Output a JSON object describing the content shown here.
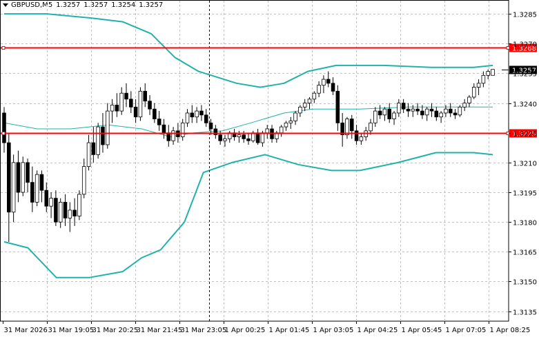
{
  "header": {
    "symbol_timeframe": "GBPUSD,M5",
    "open": "1.3257",
    "high": "1.3257",
    "low": "1.3254",
    "close": "1.3257"
  },
  "colors": {
    "background": "#ffffff",
    "grid": "#c0c0c0",
    "candle": "#000000",
    "bollinger": "#20b2aa",
    "hline": "#ff0000",
    "current_price_tag": "#000000",
    "crosshair": "#000000"
  },
  "price_axis": {
    "labels": [
      "1.3285",
      "1.3270",
      "1.3255",
      "1.3240",
      "1.3225",
      "1.3210",
      "1.3195",
      "1.3180",
      "1.3165",
      "1.3150",
      "1.3135"
    ]
  },
  "time_axis": {
    "labels": [
      "31 Mar 2026",
      "31 Mar 19:05",
      "31 Mar 20:25",
      "31 Mar 21:45",
      "31 Mar 23:05",
      "1 Apr 00:25",
      "1 Apr 01:45",
      "1 Apr 03:05",
      "1 Apr 04:25",
      "1 Apr 05:45",
      "1 Apr 07:05",
      "1 Apr 08:25"
    ]
  },
  "horizontal_lines": [
    {
      "label": "1.3268",
      "price": 1.3268
    },
    {
      "label": "1.3225",
      "price": 1.3225
    }
  ],
  "current_price": {
    "label": "1.3257",
    "price": 1.3257
  },
  "vertical_marker_time": "31 Mar 23:05",
  "chart_data": {
    "type": "candlestick",
    "ylim": [
      1.313,
      1.3292
    ],
    "bollinger": {
      "upper": [
        [
          0,
          1.3285
        ],
        [
          18,
          1.3285
        ],
        [
          36,
          1.3283
        ],
        [
          50,
          1.3281
        ],
        [
          62,
          1.3275
        ],
        [
          72,
          1.3263
        ],
        [
          82,
          1.3256
        ],
        [
          98,
          1.325
        ],
        [
          108,
          1.3248
        ],
        [
          118,
          1.325
        ],
        [
          128,
          1.3256
        ],
        [
          140,
          1.3259
        ],
        [
          160,
          1.3259
        ],
        [
          180,
          1.3258
        ],
        [
          198,
          1.3258
        ],
        [
          206,
          1.3259
        ]
      ],
      "middle": [
        [
          0,
          1.323
        ],
        [
          14,
          1.3227
        ],
        [
          28,
          1.3227
        ],
        [
          44,
          1.3229
        ],
        [
          58,
          1.3227
        ],
        [
          70,
          1.3223
        ],
        [
          80,
          1.3225
        ],
        [
          92,
          1.3226
        ],
        [
          104,
          1.323
        ],
        [
          118,
          1.3235
        ],
        [
          130,
          1.3237
        ],
        [
          150,
          1.3237
        ],
        [
          170,
          1.3238
        ],
        [
          188,
          1.3238
        ],
        [
          206,
          1.3238
        ]
      ],
      "lower": [
        [
          0,
          1.317
        ],
        [
          10,
          1.3167
        ],
        [
          22,
          1.3152
        ],
        [
          36,
          1.3152
        ],
        [
          50,
          1.3155
        ],
        [
          58,
          1.3162
        ],
        [
          66,
          1.3166
        ],
        [
          76,
          1.318
        ],
        [
          84,
          1.3205
        ],
        [
          96,
          1.321
        ],
        [
          110,
          1.3214
        ],
        [
          124,
          1.3209
        ],
        [
          138,
          1.3206
        ],
        [
          150,
          1.3206
        ],
        [
          166,
          1.321
        ],
        [
          182,
          1.3215
        ],
        [
          198,
          1.3215
        ],
        [
          206,
          1.3214
        ]
      ]
    },
    "candles": [
      [
        1.3235,
        1.3238,
        1.3215,
        1.322
      ],
      [
        1.322,
        1.3225,
        1.317,
        1.3185
      ],
      [
        1.3185,
        1.3214,
        1.318,
        1.321
      ],
      [
        1.321,
        1.3216,
        1.319,
        1.3195
      ],
      [
        1.3195,
        1.3213,
        1.3193,
        1.321
      ],
      [
        1.321,
        1.3212,
        1.3195,
        1.32
      ],
      [
        1.32,
        1.3208,
        1.3185,
        1.319
      ],
      [
        1.319,
        1.3206,
        1.3188,
        1.3204
      ],
      [
        1.3204,
        1.3206,
        1.319,
        1.3196
      ],
      [
        1.3196,
        1.32,
        1.3185,
        1.3188
      ],
      [
        1.3188,
        1.3195,
        1.3182,
        1.3192
      ],
      [
        1.3192,
        1.3196,
        1.3178,
        1.318
      ],
      [
        1.318,
        1.3192,
        1.3177,
        1.319
      ],
      [
        1.319,
        1.3194,
        1.3178,
        1.3182
      ],
      [
        1.3182,
        1.319,
        1.3175,
        1.3186
      ],
      [
        1.3186,
        1.3192,
        1.3178,
        1.3183
      ],
      [
        1.3183,
        1.3196,
        1.3181,
        1.3194
      ],
      [
        1.3194,
        1.3212,
        1.3192,
        1.3208
      ],
      [
        1.3208,
        1.3224,
        1.3206,
        1.322
      ],
      [
        1.322,
        1.3228,
        1.321,
        1.3214
      ],
      [
        1.3214,
        1.323,
        1.3212,
        1.3228
      ],
      [
        1.3228,
        1.3235,
        1.3215,
        1.3219
      ],
      [
        1.3219,
        1.324,
        1.3217,
        1.3236
      ],
      [
        1.3236,
        1.3242,
        1.323,
        1.3239
      ],
      [
        1.3239,
        1.3245,
        1.3233,
        1.3236
      ],
      [
        1.3236,
        1.3248,
        1.3234,
        1.3245
      ],
      [
        1.3245,
        1.325,
        1.3238,
        1.3242
      ],
      [
        1.3242,
        1.3246,
        1.3235,
        1.3238
      ],
      [
        1.3238,
        1.3242,
        1.323,
        1.3233
      ],
      [
        1.3233,
        1.3248,
        1.3231,
        1.3246
      ],
      [
        1.3246,
        1.325,
        1.3238,
        1.3241
      ],
      [
        1.3241,
        1.3244,
        1.3234,
        1.3237
      ],
      [
        1.3237,
        1.324,
        1.323,
        1.3232
      ],
      [
        1.3232,
        1.3236,
        1.3226,
        1.3229
      ],
      [
        1.3229,
        1.3232,
        1.3222,
        1.3225
      ],
      [
        1.3225,
        1.3229,
        1.3218,
        1.3221
      ],
      [
        1.3221,
        1.3228,
        1.3219,
        1.3226
      ],
      [
        1.3226,
        1.323,
        1.322,
        1.3223
      ],
      [
        1.3223,
        1.3232,
        1.3221,
        1.323
      ],
      [
        1.323,
        1.3237,
        1.3228,
        1.3235
      ],
      [
        1.3235,
        1.3239,
        1.323,
        1.3233
      ],
      [
        1.3233,
        1.3238,
        1.323,
        1.3236
      ],
      [
        1.3236,
        1.3239,
        1.3231,
        1.3234
      ],
      [
        1.3234,
        1.3237,
        1.3228,
        1.323
      ],
      [
        1.323,
        1.3232,
        1.3224,
        1.3227
      ],
      [
        1.3227,
        1.3229,
        1.3222,
        1.3224
      ],
      [
        1.3224,
        1.3226,
        1.3219,
        1.3221
      ],
      [
        1.3221,
        1.3224,
        1.3218,
        1.3222
      ],
      [
        1.3222,
        1.3226,
        1.322,
        1.3225
      ],
      [
        1.3225,
        1.3227,
        1.3221,
        1.3223
      ],
      [
        1.3223,
        1.3226,
        1.322,
        1.3224
      ],
      [
        1.3224,
        1.3226,
        1.322,
        1.3222
      ],
      [
        1.3222,
        1.3225,
        1.3219,
        1.3221
      ],
      [
        1.3221,
        1.3226,
        1.322,
        1.3225
      ],
      [
        1.3225,
        1.3227,
        1.3219,
        1.322
      ],
      [
        1.322,
        1.3226,
        1.3218,
        1.3225
      ],
      [
        1.3225,
        1.3229,
        1.3222,
        1.3227
      ],
      [
        1.3227,
        1.3229,
        1.322,
        1.3222
      ],
      [
        1.3222,
        1.3226,
        1.322,
        1.3225
      ],
      [
        1.3225,
        1.3229,
        1.3223,
        1.3228
      ],
      [
        1.3228,
        1.3231,
        1.3226,
        1.323
      ],
      [
        1.323,
        1.3233,
        1.3227,
        1.3231
      ],
      [
        1.3231,
        1.3236,
        1.3229,
        1.3235
      ],
      [
        1.3235,
        1.3239,
        1.3233,
        1.3238
      ],
      [
        1.3238,
        1.3242,
        1.3236,
        1.324
      ],
      [
        1.324,
        1.3243,
        1.3237,
        1.3242
      ],
      [
        1.3242,
        1.3246,
        1.324,
        1.3245
      ],
      [
        1.3245,
        1.3251,
        1.3243,
        1.3249
      ],
      [
        1.3249,
        1.3254,
        1.3245,
        1.3252
      ],
      [
        1.3252,
        1.3256,
        1.3248,
        1.325
      ],
      [
        1.325,
        1.3253,
        1.3244,
        1.3246
      ],
      [
        1.3246,
        1.3249,
        1.3226,
        1.323
      ],
      [
        1.323,
        1.3235,
        1.3218,
        1.3224
      ],
      [
        1.3224,
        1.3233,
        1.3222,
        1.3232
      ],
      [
        1.3232,
        1.3234,
        1.3222,
        1.3226
      ],
      [
        1.3226,
        1.3229,
        1.3219,
        1.3221
      ],
      [
        1.3221,
        1.3225,
        1.3219,
        1.3223
      ],
      [
        1.3223,
        1.3228,
        1.3221,
        1.3226
      ],
      [
        1.3226,
        1.3232,
        1.3224,
        1.323
      ],
      [
        1.323,
        1.3238,
        1.3228,
        1.3236
      ],
      [
        1.3236,
        1.3239,
        1.3232,
        1.3234
      ],
      [
        1.3234,
        1.3238,
        1.3231,
        1.3237
      ],
      [
        1.3237,
        1.324,
        1.323,
        1.3232
      ],
      [
        1.3232,
        1.3236,
        1.3229,
        1.3235
      ],
      [
        1.3235,
        1.3242,
        1.3233,
        1.324
      ],
      [
        1.324,
        1.3242,
        1.3235,
        1.3237
      ],
      [
        1.3237,
        1.324,
        1.3233,
        1.3236
      ],
      [
        1.3236,
        1.3239,
        1.3233,
        1.3237
      ],
      [
        1.3237,
        1.324,
        1.3234,
        1.3236
      ],
      [
        1.3236,
        1.3239,
        1.3232,
        1.3234
      ],
      [
        1.3234,
        1.3238,
        1.3231,
        1.3237
      ],
      [
        1.3237,
        1.324,
        1.3233,
        1.3236
      ],
      [
        1.3236,
        1.3238,
        1.3231,
        1.3233
      ],
      [
        1.3233,
        1.3236,
        1.323,
        1.3235
      ],
      [
        1.3235,
        1.3239,
        1.3233,
        1.3237
      ],
      [
        1.3237,
        1.324,
        1.3233,
        1.3235
      ],
      [
        1.3235,
        1.3237,
        1.3232,
        1.3234
      ],
      [
        1.3234,
        1.3239,
        1.3233,
        1.3238
      ],
      [
        1.3238,
        1.3242,
        1.3236,
        1.324
      ],
      [
        1.324,
        1.3244,
        1.3238,
        1.3243
      ],
      [
        1.3243,
        1.325,
        1.3242,
        1.3248
      ],
      [
        1.3248,
        1.3252,
        1.3244,
        1.325
      ],
      [
        1.325,
        1.3256,
        1.3248,
        1.3254
      ],
      [
        1.3254,
        1.3257,
        1.3252,
        1.3256
      ],
      [
        1.3254,
        1.3257,
        1.3254,
        1.3257
      ]
    ]
  }
}
